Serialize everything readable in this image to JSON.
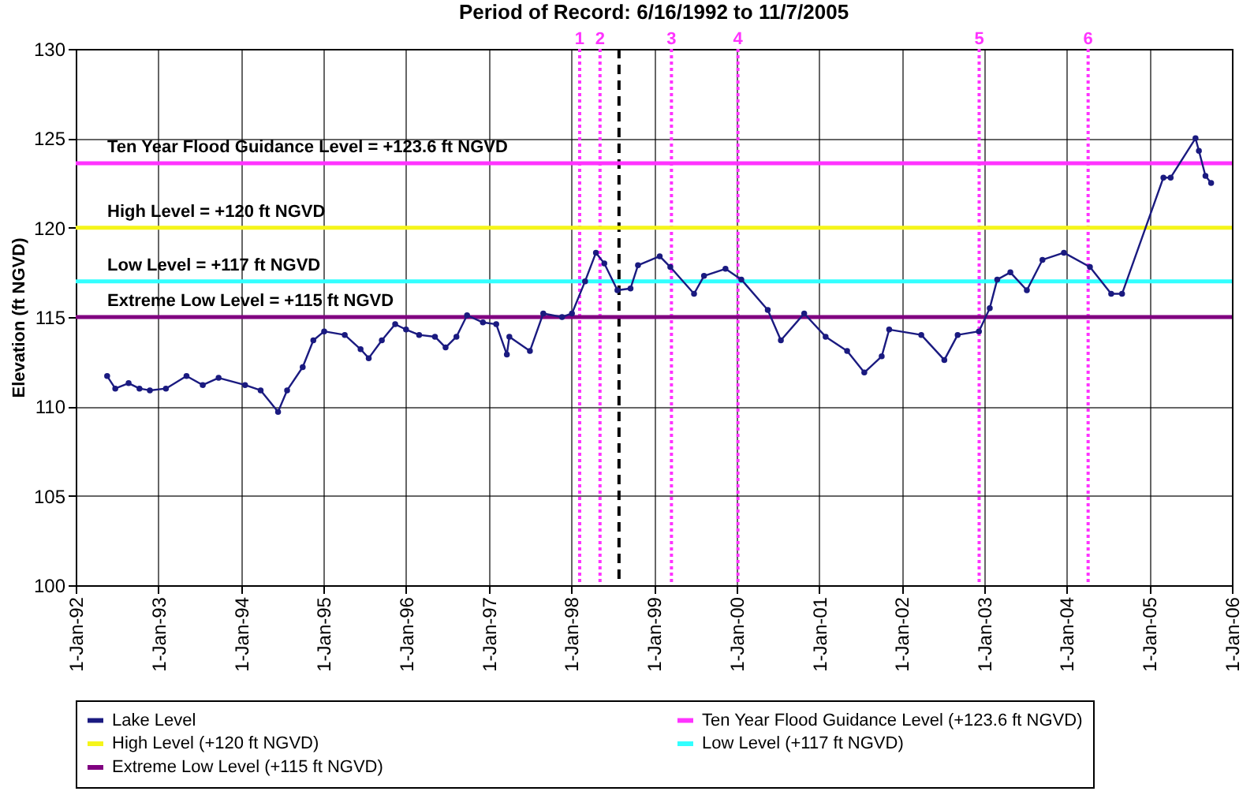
{
  "chart_data": {
    "type": "line",
    "title": "Period of Record: 6/16/1992 to 11/7/2005",
    "ylabel": "Elevation (ft NGVD)",
    "xlim": [
      "1992-01-01",
      "2006-01-01"
    ],
    "xticks": [
      {
        "value": "1992-01-01",
        "label": "1-Jan-92"
      },
      {
        "value": "1993-01-01",
        "label": "1-Jan-93"
      },
      {
        "value": "1994-01-01",
        "label": "1-Jan-94"
      },
      {
        "value": "1995-01-01",
        "label": "1-Jan-95"
      },
      {
        "value": "1996-01-01",
        "label": "1-Jan-96"
      },
      {
        "value": "1997-01-01",
        "label": "1-Jan-97"
      },
      {
        "value": "1998-01-01",
        "label": "1-Jan-98"
      },
      {
        "value": "1999-01-01",
        "label": "1-Jan-99"
      },
      {
        "value": "2000-01-01",
        "label": "1-Jan-00"
      },
      {
        "value": "2001-01-01",
        "label": "1-Jan-01"
      },
      {
        "value": "2002-01-01",
        "label": "1-Jan-02"
      },
      {
        "value": "2003-01-01",
        "label": "1-Jan-03"
      },
      {
        "value": "2004-01-01",
        "label": "1-Jan-04"
      },
      {
        "value": "2005-01-01",
        "label": "1-Jan-05"
      },
      {
        "value": "2006-01-01",
        "label": "1-Jan-06"
      }
    ],
    "ylim": [
      100,
      130
    ],
    "yticks": [
      100,
      105,
      110,
      115,
      120,
      125,
      130
    ],
    "grid": true,
    "legend": "bottom",
    "marker": "circle",
    "line_style": "solid",
    "series": [
      {
        "name": "Lake Level",
        "color": "#1a1a80",
        "x": [
          "1992-05-19",
          "1992-06-24",
          "1992-08-22",
          "1992-10-09",
          "1992-11-24",
          "1993-02-03",
          "1993-05-05",
          "1993-07-16",
          "1993-09-24",
          "1994-01-19",
          "1994-03-29",
          "1994-06-14",
          "1994-07-24",
          "1994-10-01",
          "1994-11-17",
          "1995-01-04",
          "1995-04-05",
          "1995-06-14",
          "1995-07-20",
          "1995-09-16",
          "1995-11-14",
          "1996-01-01",
          "1996-02-28",
          "1996-05-08",
          "1996-06-24",
          "1996-08-11",
          "1996-09-27",
          "1996-12-06",
          "1997-02-03",
          "1997-03-22",
          "1997-04-02",
          "1997-07-02",
          "1997-08-30",
          "1997-11-21",
          "1998-01-04",
          "1998-03-03",
          "1998-04-20",
          "1998-05-27",
          "1998-07-24",
          "1998-09-20",
          "1998-10-23",
          "1999-01-27",
          "1999-03-15",
          "1999-06-28",
          "1999-08-11",
          "1999-11-14",
          "2000-01-23",
          "2000-05-19",
          "2000-07-16",
          "2000-10-27",
          "2001-01-30",
          "2001-05-05",
          "2001-07-20",
          "2001-10-05",
          "2001-11-07",
          "2002-03-29",
          "2002-07-09",
          "2002-09-06",
          "2002-12-09",
          "2003-01-26",
          "2003-02-28",
          "2003-04-27",
          "2003-07-09",
          "2003-09-16",
          "2003-12-20",
          "2004-04-13",
          "2004-07-16",
          "2004-09-02",
          "2005-03-04",
          "2005-04-05",
          "2005-07-24",
          "2005-08-08",
          "2005-09-06",
          "2005-10-01"
        ],
        "values": [
          111.7,
          111.0,
          111.3,
          111.0,
          110.9,
          111.0,
          111.7,
          111.2,
          111.6,
          111.2,
          110.9,
          109.7,
          110.9,
          112.2,
          113.7,
          114.2,
          114.0,
          113.2,
          112.7,
          113.7,
          114.6,
          114.3,
          114.0,
          113.9,
          113.3,
          113.9,
          115.1,
          114.7,
          114.6,
          112.9,
          113.9,
          113.1,
          115.2,
          115.0,
          115.2,
          117.0,
          118.6,
          118.0,
          116.5,
          116.6,
          117.9,
          118.4,
          117.8,
          116.3,
          117.3,
          117.7,
          117.1,
          115.4,
          113.7,
          115.2,
          113.9,
          113.1,
          111.9,
          112.8,
          114.3,
          114.0,
          112.6,
          114.0,
          114.2,
          115.5,
          117.1,
          117.5,
          116.5,
          118.2,
          118.6,
          117.8,
          116.3,
          116.3,
          122.8,
          122.8,
          125.0,
          124.3,
          122.9,
          122.5
        ]
      }
    ],
    "ref_lines": [
      {
        "axis": "y",
        "value": 123.6,
        "label": "Ten Year Flood Guidance Level (+123.6 ft NGVD)",
        "color": "#ff33ff",
        "line_style": "solid"
      },
      {
        "axis": "y",
        "value": 120,
        "label": "High Level (+120 ft NGVD)",
        "color": "#f5f51a",
        "line_style": "solid"
      },
      {
        "axis": "y",
        "value": 117,
        "label": "Low Level (+117 ft NGVD)",
        "color": "#33ffff",
        "line_style": "solid"
      },
      {
        "axis": "y",
        "value": 115,
        "label": "Extreme Low Level (+115 ft NGVD)",
        "color": "#800080",
        "line_style": "solid"
      },
      {
        "axis": "x",
        "value": "1998-02-07",
        "label": "1",
        "color": "#ff33ff",
        "line_style": "dotted"
      },
      {
        "axis": "x",
        "value": "1998-05-08",
        "label": "2",
        "color": "#ff33ff",
        "line_style": "dotted"
      },
      {
        "axis": "x",
        "value": "1998-07-31",
        "label": null,
        "color": "#000000",
        "line_style": "dashed"
      },
      {
        "axis": "x",
        "value": "1999-03-20",
        "label": "3",
        "color": "#ff33ff",
        "line_style": "dotted"
      },
      {
        "axis": "x",
        "value": "2000-01-08",
        "label": "4",
        "color": "#ff33ff",
        "line_style": "dotted"
      },
      {
        "axis": "x",
        "value": "2002-12-10",
        "label": "5",
        "color": "#ff33ff",
        "line_style": "dotted"
      },
      {
        "axis": "x",
        "value": "2004-04-05",
        "label": "6",
        "color": "#ff33ff",
        "line_style": "dotted"
      }
    ],
    "annotations": [
      {
        "text": "Ten Year Flood Guidance Level = +123.6 ft NGVD",
        "y": 123.6
      },
      {
        "text": "High Level = +120 ft NGVD",
        "y": 120
      },
      {
        "text": "Low Level = +117 ft NGVD",
        "y": 117
      },
      {
        "text": "Extreme Low Level = +115 ft NGVD",
        "y": 115
      }
    ]
  }
}
